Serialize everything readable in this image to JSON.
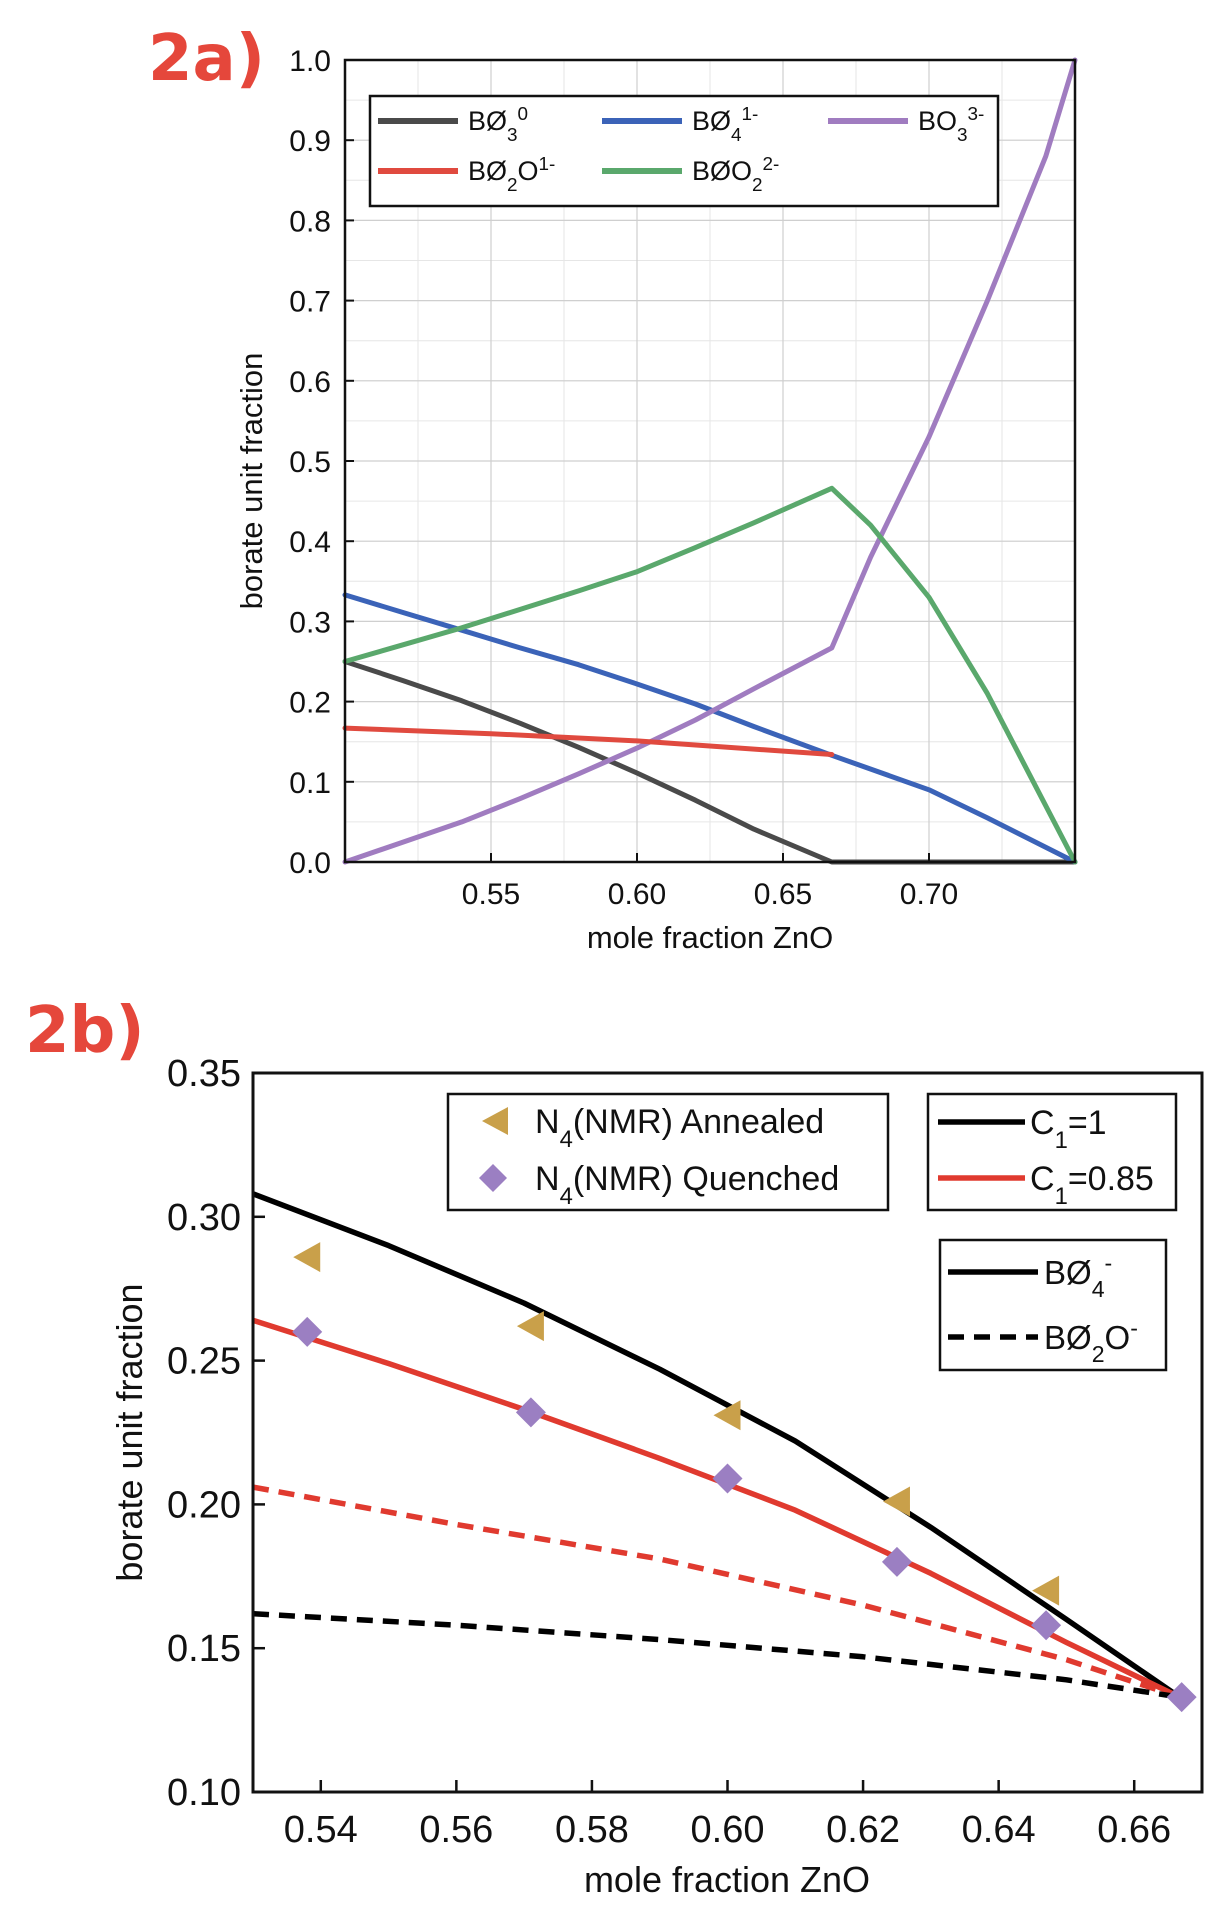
{
  "chart_data": [
    {
      "panel": "2a)",
      "type": "line",
      "xlabel": "mole fraction ZnO",
      "ylabel": "borate unit fraction",
      "xlim": [
        0.5,
        0.75
      ],
      "ylim": [
        0.0,
        1.0
      ],
      "xticks": [
        "0.55",
        "0.60",
        "0.65",
        "0.70"
      ],
      "xtick_values": [
        0.55,
        0.6,
        0.65,
        0.7
      ],
      "yticks": [
        "0.0",
        "0.1",
        "0.2",
        "0.3",
        "0.4",
        "0.5",
        "0.6",
        "0.7",
        "0.8",
        "0.9",
        "1.0"
      ],
      "ytick_values": [
        0.0,
        0.1,
        0.2,
        0.3,
        0.4,
        0.5,
        0.6,
        0.7,
        0.8,
        0.9,
        1.0
      ],
      "grid": true,
      "legend_position": "top",
      "series": [
        {
          "name": "BØ3 0",
          "label_main": "BØ",
          "label_sub": "3",
          "label_sup": "0",
          "color": "#4a4a4a",
          "x": [
            0.5,
            0.52,
            0.54,
            0.56,
            0.58,
            0.6,
            0.62,
            0.64,
            0.6667,
            0.7,
            0.75
          ],
          "y": [
            0.25,
            0.226,
            0.201,
            0.173,
            0.143,
            0.111,
            0.077,
            0.041,
            0.0,
            0.0,
            0.0
          ]
        },
        {
          "name": "BØ4 1-",
          "label_main": "BØ",
          "label_sub": "4",
          "label_sup": "1-",
          "color": "#3b63b8",
          "x": [
            0.5,
            0.52,
            0.54,
            0.56,
            0.58,
            0.6,
            0.62,
            0.64,
            0.6667,
            0.7,
            0.72,
            0.75
          ],
          "y": [
            0.333,
            0.311,
            0.289,
            0.267,
            0.246,
            0.222,
            0.197,
            0.169,
            0.133,
            0.09,
            0.055,
            0.0
          ]
        },
        {
          "name": "BO3 3-",
          "label_main": "BO",
          "label_sub": "3",
          "label_sup": "3-",
          "color": "#a07cc0",
          "x": [
            0.5,
            0.52,
            0.54,
            0.56,
            0.58,
            0.6,
            0.62,
            0.64,
            0.6667,
            0.68,
            0.7,
            0.72,
            0.74,
            0.75
          ],
          "y": [
            0.0,
            0.025,
            0.05,
            0.079,
            0.11,
            0.142,
            0.177,
            0.216,
            0.267,
            0.38,
            0.53,
            0.7,
            0.88,
            1.0
          ]
        },
        {
          "name": "BØ2O 1-",
          "label_main": "BØ",
          "label_sub": "2",
          "label_after": "O",
          "label_sup": "1-",
          "color": "#e04a3f",
          "x": [
            0.5,
            0.55,
            0.6,
            0.6667
          ],
          "y": [
            0.167,
            0.16,
            0.151,
            0.134
          ]
        },
        {
          "name": "BØO2 2-",
          "label_main": "BØO",
          "label_sub": "2",
          "label_sup": "2-",
          "color": "#5aa86c",
          "x": [
            0.5,
            0.52,
            0.54,
            0.56,
            0.58,
            0.6,
            0.62,
            0.64,
            0.6667,
            0.68,
            0.7,
            0.72,
            0.75
          ],
          "y": [
            0.25,
            0.271,
            0.292,
            0.315,
            0.338,
            0.362,
            0.392,
            0.423,
            0.466,
            0.42,
            0.33,
            0.21,
            0.0
          ]
        }
      ]
    },
    {
      "panel": "2b)",
      "type": "line+scatter",
      "xlabel": "mole fraction ZnO",
      "ylabel": "borate unit fraction",
      "xlim": [
        0.53,
        0.67
      ],
      "ylim": [
        0.1,
        0.35
      ],
      "xticks": [
        "0.54",
        "0.56",
        "0.58",
        "0.60",
        "0.62",
        "0.64",
        "0.66"
      ],
      "xtick_values": [
        0.54,
        0.56,
        0.58,
        0.6,
        0.62,
        0.64,
        0.66
      ],
      "yticks": [
        "0.10",
        "0.15",
        "0.20",
        "0.25",
        "0.30",
        "0.35"
      ],
      "ytick_values": [
        0.1,
        0.15,
        0.2,
        0.25,
        0.3,
        0.35
      ],
      "grid": false,
      "lines": [
        {
          "name": "BØ4- C1=1",
          "color": "#000000",
          "dash": false,
          "x": [
            0.53,
            0.55,
            0.57,
            0.59,
            0.61,
            0.63,
            0.65,
            0.6667
          ],
          "y": [
            0.308,
            0.29,
            0.27,
            0.247,
            0.222,
            0.192,
            0.16,
            0.133
          ]
        },
        {
          "name": "BØ4- C1=0.85",
          "color": "#e03a2f",
          "dash": false,
          "x": [
            0.53,
            0.55,
            0.57,
            0.59,
            0.61,
            0.63,
            0.65,
            0.6667
          ],
          "y": [
            0.264,
            0.249,
            0.233,
            0.216,
            0.198,
            0.176,
            0.152,
            0.133
          ]
        },
        {
          "name": "BØ2O- C1=0.85",
          "color": "#e03a2f",
          "dash": true,
          "x": [
            0.53,
            0.56,
            0.59,
            0.62,
            0.65,
            0.6667
          ],
          "y": [
            0.206,
            0.193,
            0.181,
            0.165,
            0.146,
            0.133
          ]
        },
        {
          "name": "BØ2O- C1=1",
          "color": "#000000",
          "dash": true,
          "x": [
            0.53,
            0.56,
            0.59,
            0.62,
            0.65,
            0.6667
          ],
          "y": [
            0.162,
            0.158,
            0.153,
            0.147,
            0.139,
            0.133
          ]
        }
      ],
      "scatter": [
        {
          "name": "N4(NMR) Annealed",
          "marker": "triangle-left",
          "color": "#c9a04a",
          "x": [
            0.538,
            0.571,
            0.6,
            0.625,
            0.647
          ],
          "y": [
            0.286,
            0.262,
            0.231,
            0.201,
            0.17
          ]
        },
        {
          "name": "N4(NMR) Quenched",
          "marker": "diamond",
          "color": "#9b7fc2",
          "x": [
            0.538,
            0.571,
            0.6,
            0.625,
            0.647,
            0.667
          ],
          "y": [
            0.26,
            0.232,
            0.209,
            0.18,
            0.158,
            0.133
          ]
        }
      ],
      "legends": {
        "markers": [
          {
            "main": "N",
            "sub": "4",
            "rest": "(NMR) Annealed"
          },
          {
            "main": "N",
            "sub": "4",
            "rest": "(NMR) Quenched"
          }
        ],
        "colors": [
          {
            "main": "C",
            "sub": "1",
            "rest": "=1"
          },
          {
            "main": "C",
            "sub": "1",
            "rest": "=0.85"
          }
        ],
        "styles": [
          {
            "main": "BØ",
            "sub": "",
            "sup": "-"
          },
          {
            "main": "BØ",
            "sub": "2",
            "after": "O",
            "sup": "-"
          }
        ],
        "style_subs": [
          "4",
          "2"
        ]
      }
    }
  ]
}
